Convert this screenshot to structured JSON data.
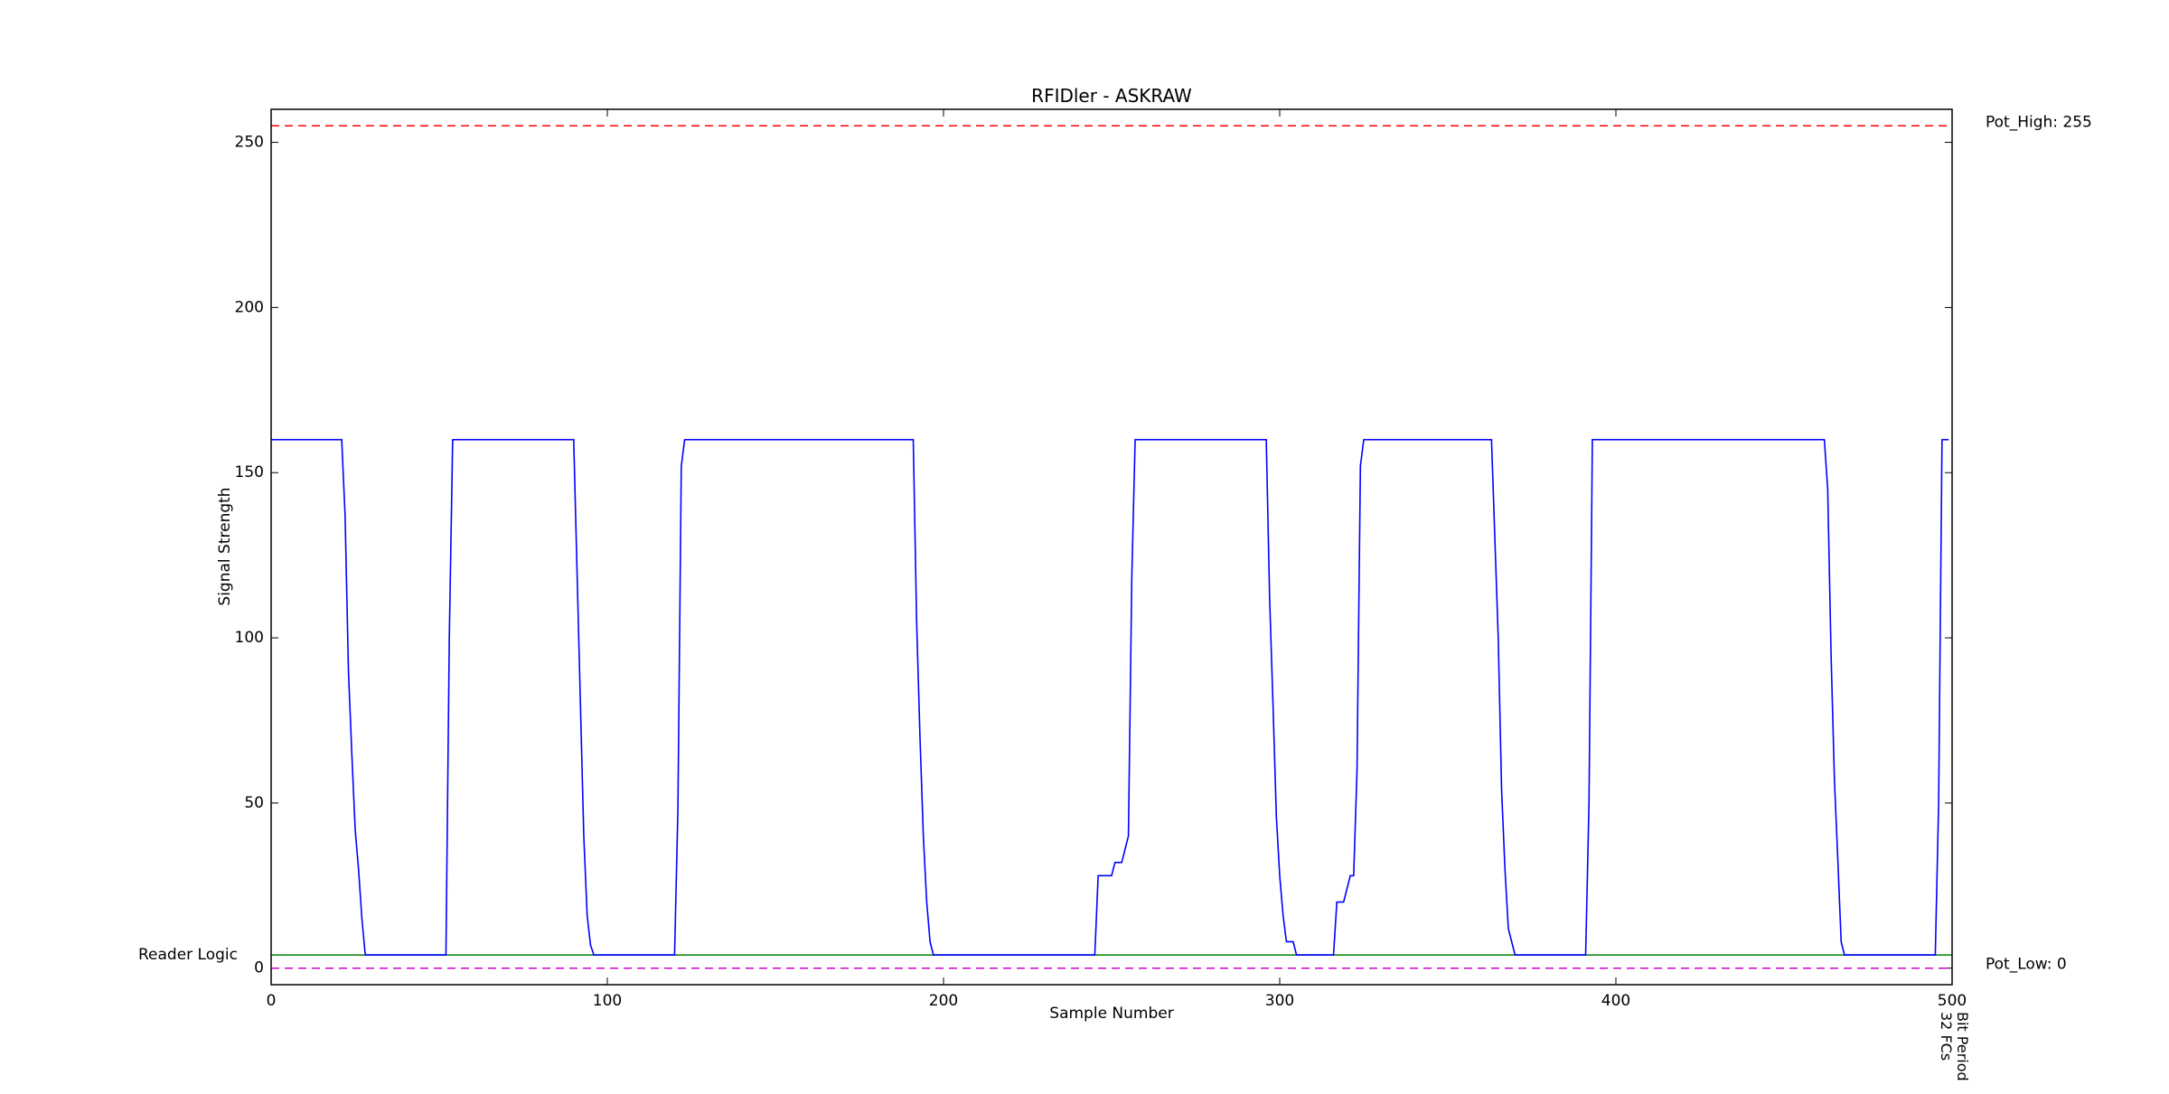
{
  "chart_data": {
    "type": "line",
    "title": "RFIDler - ASKRAW",
    "xlabel": "Sample Number",
    "ylabel": "Signal Strength",
    "xlim": [
      0,
      500
    ],
    "ylim": [
      -5,
      260
    ],
    "xticks": [
      0,
      100,
      200,
      300,
      400,
      500
    ],
    "yticks": [
      0,
      50,
      100,
      150,
      200,
      250
    ],
    "series": [
      {
        "color": "#0000ff",
        "x": [
          0,
          21,
          22,
          23,
          24,
          25,
          26,
          27,
          28,
          52,
          53,
          54,
          90,
          91,
          92,
          93,
          94,
          95,
          96,
          120,
          121,
          122,
          123,
          191,
          192,
          193,
          194,
          195,
          196,
          197,
          245,
          246,
          250,
          251,
          253,
          255,
          256,
          257,
          296,
          297,
          298,
          299,
          300,
          301,
          302,
          304,
          305,
          316,
          317,
          319,
          320,
          321,
          322,
          323,
          324,
          325,
          363,
          364,
          365,
          366,
          367,
          368,
          370,
          391,
          392,
          393,
          462,
          463,
          464,
          465,
          466,
          467,
          468,
          495,
          496,
          497,
          499
        ],
        "values": [
          160,
          160,
          137,
          90,
          65,
          42,
          30,
          15,
          4,
          4,
          100,
          160,
          160,
          120,
          80,
          40,
          16,
          7,
          4,
          4,
          48,
          152,
          160,
          160,
          105,
          70,
          40,
          20,
          8,
          4,
          4,
          28,
          28,
          32,
          32,
          40,
          118,
          160,
          160,
          112,
          80,
          46,
          28,
          16,
          8,
          8,
          4,
          4,
          20,
          20,
          24,
          28,
          28,
          60,
          152,
          160,
          160,
          130,
          100,
          54,
          30,
          12,
          4,
          4,
          50,
          160,
          160,
          145,
          95,
          57,
          33,
          8,
          4,
          4,
          50,
          160,
          160
        ]
      }
    ],
    "hlines": [
      {
        "label": "Pot_High: 255",
        "value": 255,
        "color": "#ff0000",
        "style": "dashed",
        "side": "right"
      },
      {
        "label": "Pot_Low: 0",
        "value": 0,
        "color": "#cc00cc",
        "style": "dashed",
        "side": "right"
      },
      {
        "label": "Reader Logic",
        "value": 4,
        "color": "#008000",
        "style": "solid",
        "side": "left"
      }
    ],
    "vannotation": {
      "x": 500,
      "lines": [
        "Bit Period",
        "32 FCs"
      ],
      "color": "#f08080"
    }
  }
}
